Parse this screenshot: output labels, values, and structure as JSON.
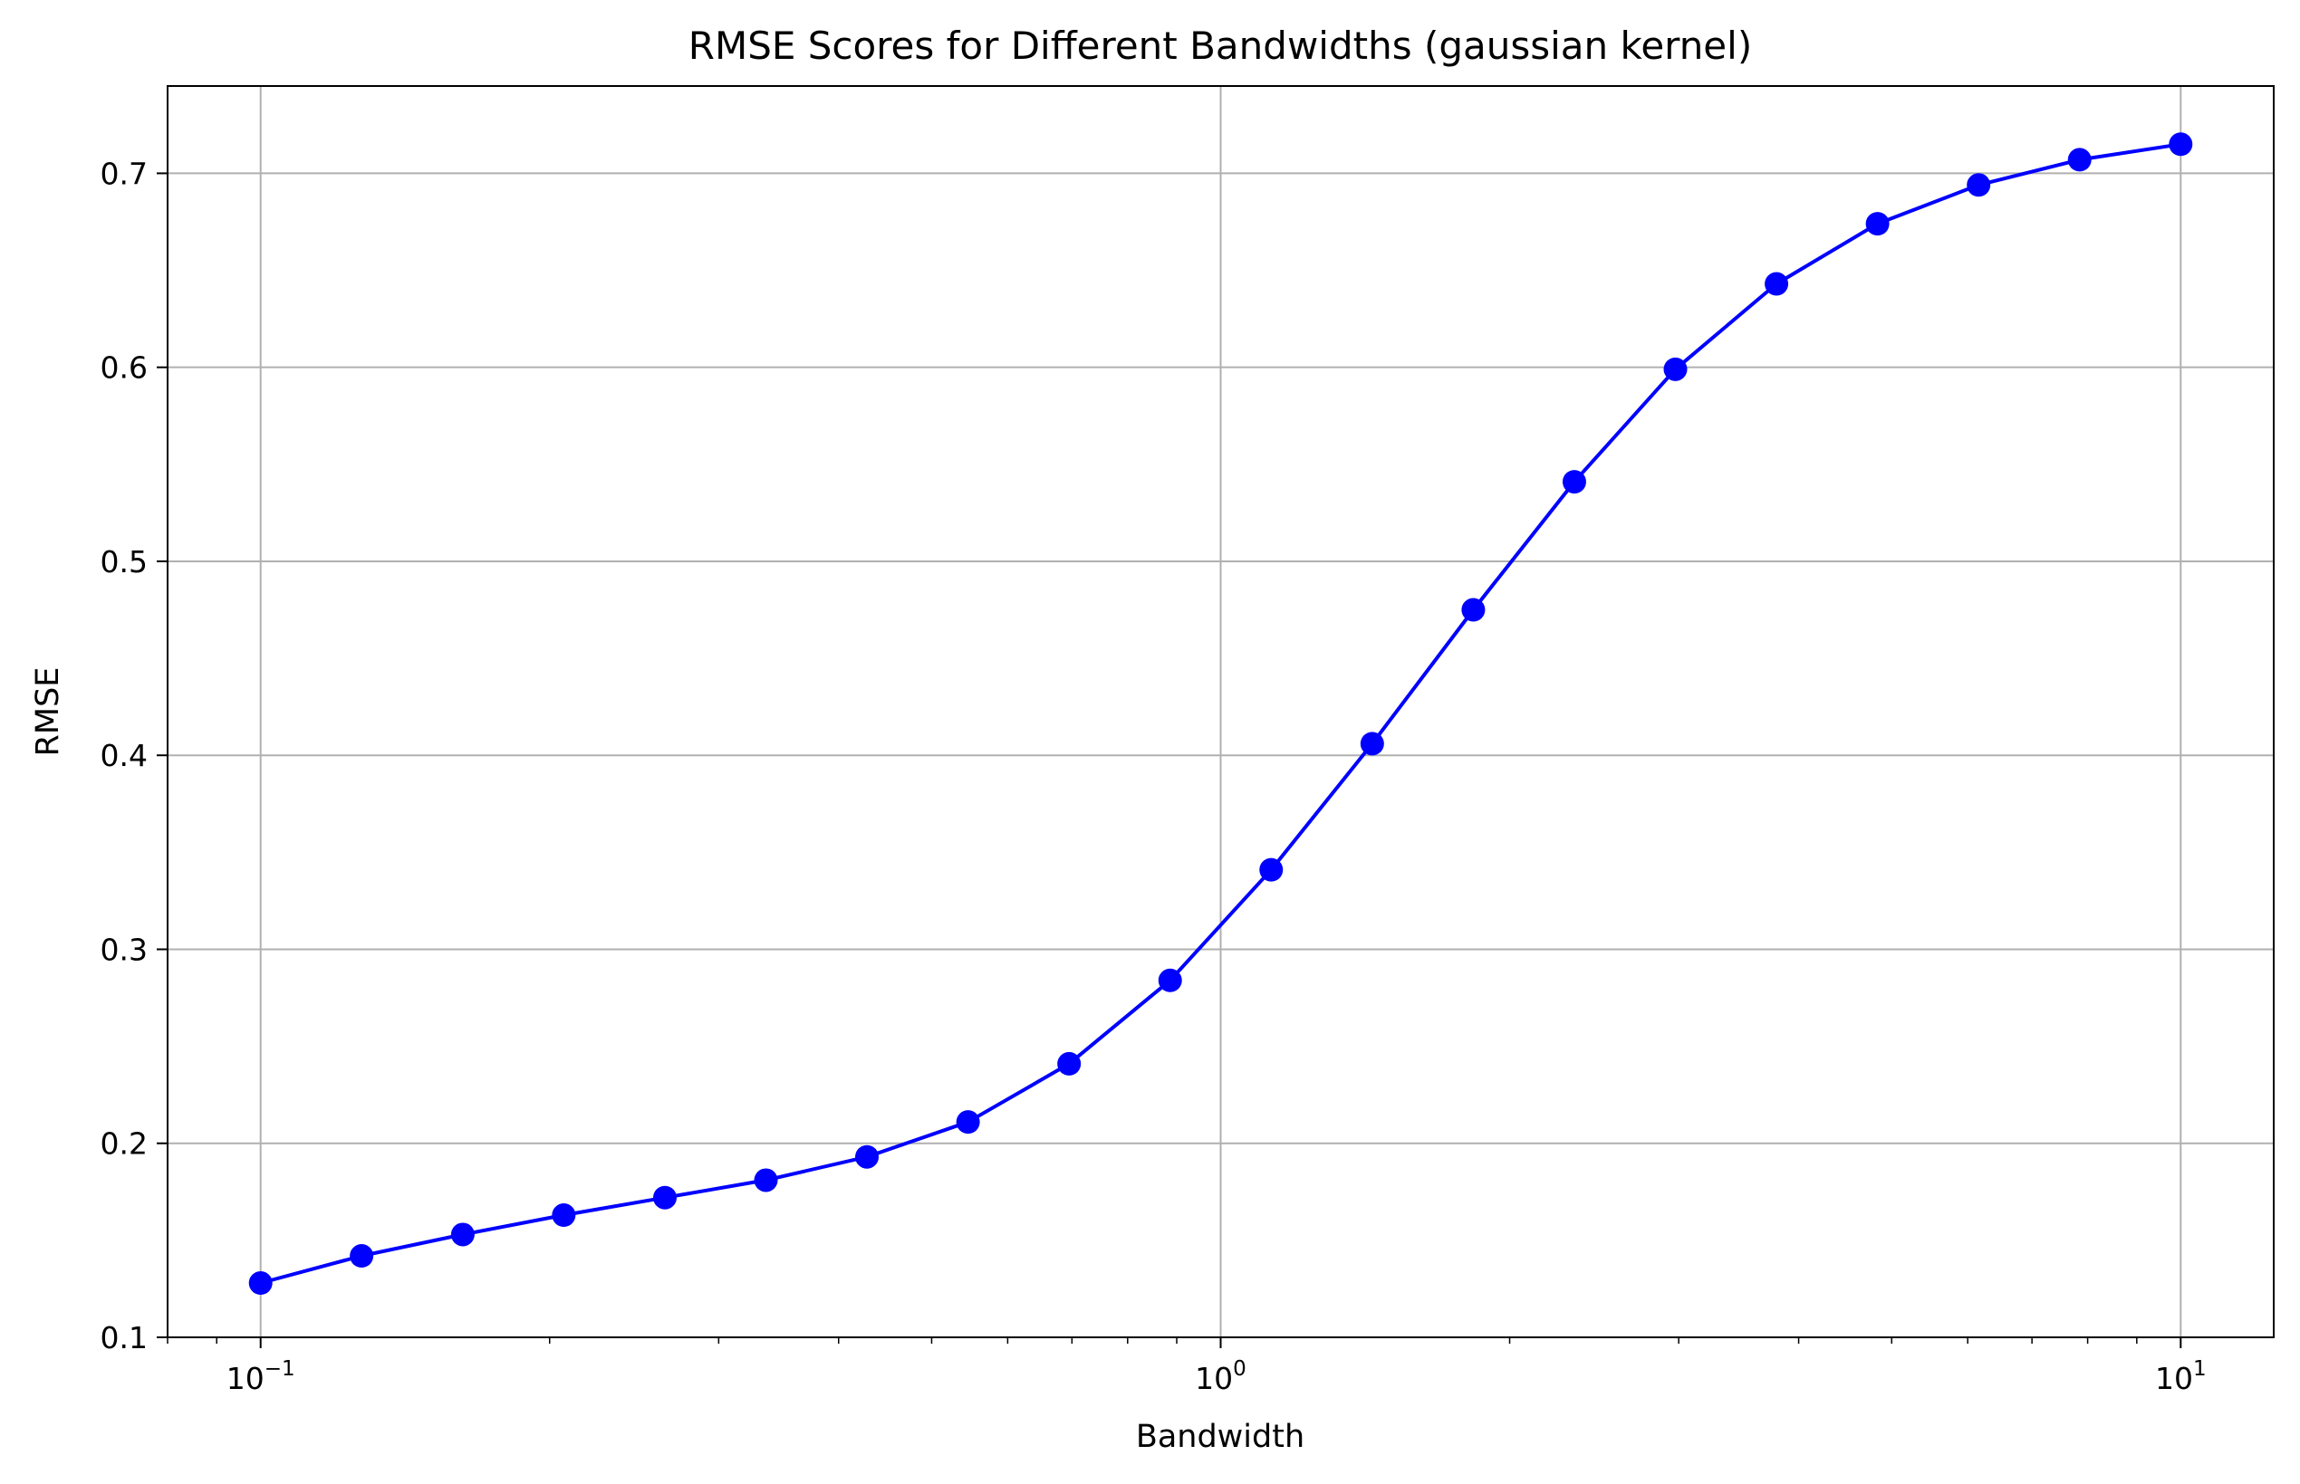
{
  "chart_data": {
    "type": "line",
    "title": "RMSE Scores for Different Bandwidths (gaussian kernel)",
    "xlabel": "Bandwidth",
    "ylabel": "RMSE",
    "x_scale": "log",
    "xlim": [
      0.08,
      12.5
    ],
    "ylim": [
      0.1,
      0.745
    ],
    "grid": true,
    "x_ticks": [
      {
        "value": 0.1,
        "base": "10",
        "exponent": "−1"
      },
      {
        "value": 1,
        "base": "10",
        "exponent": "0"
      },
      {
        "value": 10,
        "base": "10",
        "exponent": "1"
      }
    ],
    "y_ticks": [
      {
        "value": 0.1,
        "label": "0.1"
      },
      {
        "value": 0.2,
        "label": "0.2"
      },
      {
        "value": 0.3,
        "label": "0.3"
      },
      {
        "value": 0.4,
        "label": "0.4"
      },
      {
        "value": 0.5,
        "label": "0.5"
      },
      {
        "value": 0.6,
        "label": "0.6"
      },
      {
        "value": 0.7,
        "label": "0.7"
      }
    ],
    "series": [
      {
        "color": "#0000ff",
        "marker": "circle",
        "x": [
          0.1,
          0.1274,
          0.1624,
          0.2069,
          0.2637,
          0.336,
          0.4281,
          0.5456,
          0.6952,
          0.8859,
          1.1288,
          1.4384,
          1.833,
          2.3357,
          2.9764,
          3.7927,
          4.8329,
          6.1585,
          7.8476,
          10.0
        ],
        "y": [
          0.128,
          0.142,
          0.153,
          0.163,
          0.172,
          0.181,
          0.193,
          0.211,
          0.241,
          0.284,
          0.341,
          0.406,
          0.475,
          0.541,
          0.599,
          0.643,
          0.674,
          0.694,
          0.707,
          0.715
        ]
      }
    ]
  }
}
